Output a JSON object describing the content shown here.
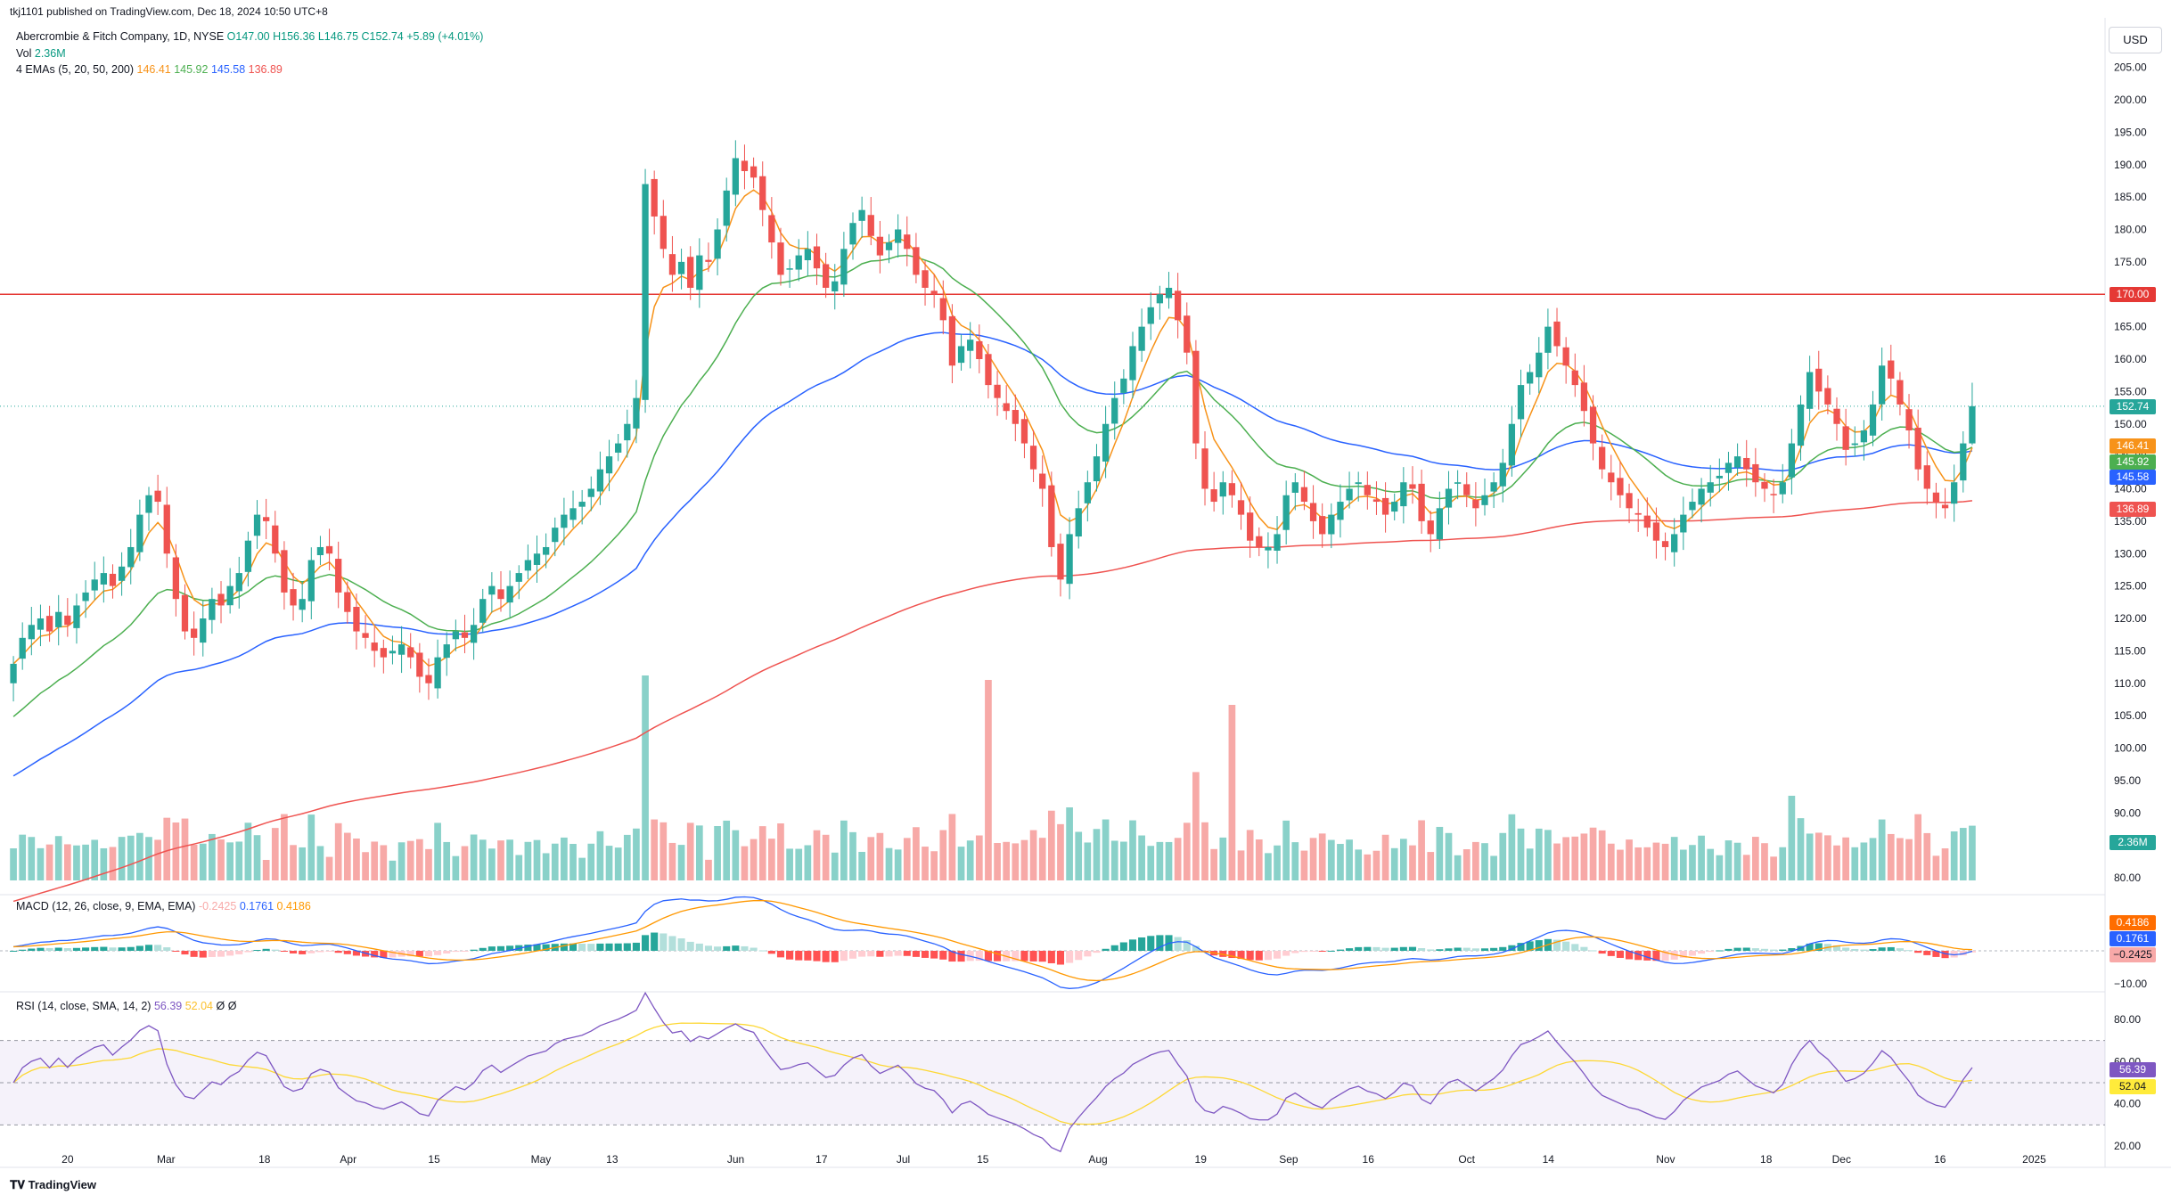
{
  "publish_info": "tkj1101 published on TradingView.com, Dec 18, 2024 10:50 UTC+8",
  "symbol_line": {
    "name": "Abercrombie & Fitch Company, 1D, NYSE",
    "ohlc": "O147.00 H156.36 L146.75 C152.74 +5.89 (+4.01%)"
  },
  "volume_line": {
    "label": "Vol",
    "value": "2.36M"
  },
  "ema_line": {
    "label": "4 EMAs (5, 20, 50, 200)",
    "values": [
      "146.41",
      "145.92",
      "145.58",
      "136.89"
    ]
  },
  "macd_line": {
    "label": "MACD (12, 26, close, 9, EMA, EMA)",
    "values": [
      "-0.2425",
      "0.1761",
      "0.4186"
    ]
  },
  "rsi_line": {
    "label": "RSI (14, close, SMA, 14, 2)",
    "values": [
      "56.39",
      "52.04",
      "Ø",
      "Ø"
    ]
  },
  "currency": "USD",
  "brand": "TradingView",
  "price_labels": {
    "resistance": "170.00",
    "close": "152.74",
    "ema5": "146.41",
    "ema20": "145.92",
    "ema50": "145.58",
    "ema200": "136.89",
    "volume": "2.36M",
    "macd_signal": "0.4186",
    "macd": "0.1761",
    "macd_hist": "−0.2425",
    "rsi": "56.39",
    "rsi_ma": "52.04"
  },
  "colors": {
    "up": "#26a69a",
    "down": "#ef5350",
    "ema5": "#f7931a",
    "ema20": "#4caf50",
    "ema50": "#2962ff",
    "ema200": "#ef5350",
    "macd": "#2962ff",
    "signal": "#ff9800",
    "rsi": "#7e57c2",
    "rsi_ma": "#fdd835",
    "resistance": "#e53935",
    "close_line": "#26a69a"
  },
  "chart_data": [
    {
      "type": "candlestick",
      "title": "Abercrombie & Fitch Company, 1D, NYSE",
      "ylim": [
        77,
        207
      ],
      "y_ticks": [
        "205.00",
        "200.00",
        "195.00",
        "190.00",
        "185.00",
        "180.00",
        "175.00",
        "170.00",
        "165.00",
        "160.00",
        "155.00",
        "150.00",
        "145.00",
        "140.00",
        "135.00",
        "130.00",
        "125.00",
        "120.00",
        "115.00",
        "110.00",
        "105.00",
        "100.00",
        "95.00",
        "90.00",
        "85.00",
        "80.00"
      ],
      "x_ticks": [
        "20",
        "Mar",
        "18",
        "Apr",
        "15",
        "May",
        "13",
        "Jun",
        "17",
        "Jul",
        "15",
        "Aug",
        "19",
        "Sep",
        "16",
        "Oct",
        "14",
        "Nov",
        "18",
        "Dec",
        "16",
        "2025"
      ],
      "close": [
        113,
        117,
        119,
        120,
        118,
        121,
        119,
        122,
        124,
        126,
        127,
        125,
        128,
        131,
        136,
        139,
        138,
        130,
        123,
        118,
        117,
        120,
        123,
        122,
        125,
        127,
        132,
        136,
        135,
        130,
        124,
        122,
        123,
        129,
        131,
        130,
        124,
        121,
        118,
        117,
        115,
        114,
        115,
        116,
        114,
        111,
        110,
        114,
        116,
        118,
        117,
        119,
        123,
        125,
        123,
        125,
        127,
        129,
        130,
        131,
        134,
        136,
        137,
        138,
        140,
        143,
        145,
        147,
        150,
        154,
        187,
        182,
        177,
        173,
        175,
        171,
        176,
        175,
        180,
        186,
        191,
        189,
        188,
        183,
        178,
        173,
        174,
        176,
        177,
        174,
        171,
        172,
        177,
        181,
        183,
        179,
        176,
        178,
        180,
        177,
        173,
        171,
        170,
        166,
        159,
        162,
        163,
        160,
        156,
        154,
        152,
        150,
        147,
        143,
        140,
        131,
        126,
        133,
        137,
        141,
        145,
        150,
        154,
        157,
        162,
        165,
        168,
        170,
        171,
        166,
        161,
        147,
        140,
        138,
        141,
        139,
        136,
        132,
        131,
        131,
        133,
        139,
        141,
        138,
        135,
        133,
        136,
        138,
        140,
        141,
        139,
        138,
        136,
        138,
        141,
        140,
        135,
        133,
        137,
        140,
        141,
        139,
        137,
        139,
        141,
        144,
        150,
        156,
        158,
        161,
        165,
        162,
        159,
        156,
        152,
        147,
        143,
        141,
        139,
        137,
        136,
        134,
        132,
        131,
        133,
        136,
        138,
        140,
        141,
        142,
        144,
        145,
        143,
        141,
        140,
        139,
        141,
        147,
        153,
        158,
        155,
        153,
        150,
        146,
        147,
        149,
        153,
        159,
        157,
        153,
        149,
        143,
        140,
        138,
        137,
        141,
        147,
        152.74
      ]
    },
    {
      "type": "line",
      "title": "4 EMAs (5, 20, 50, 200)",
      "series": [
        {
          "name": "EMA 5",
          "last": 146.41
        },
        {
          "name": "EMA 20",
          "last": 145.92
        },
        {
          "name": "EMA 50",
          "last": 145.58
        },
        {
          "name": "EMA 200",
          "last": 136.89
        }
      ],
      "start": {
        "ema5": 113,
        "ema20": 104,
        "ema50": 95,
        "ema200": 76
      }
    },
    {
      "type": "bar",
      "title": "Volume",
      "last": "2.36M"
    },
    {
      "type": "line",
      "title": "MACD (12, 26, close, 9, EMA, EMA)",
      "ylim": [
        -12,
        10
      ],
      "y_ticks": [
        "−10.00"
      ],
      "last": {
        "histogram": -0.2425,
        "macd": 0.1761,
        "signal": 0.4186
      }
    },
    {
      "type": "line",
      "title": "RSI (14, close, SMA, 14, 2)",
      "ylim": [
        17,
        86
      ],
      "y_ticks": [
        "80.00",
        "60.00",
        "40.00",
        "20.00"
      ],
      "bands": [
        70,
        50,
        30
      ],
      "last": {
        "rsi": 56.39,
        "ma": 52.04
      }
    }
  ]
}
